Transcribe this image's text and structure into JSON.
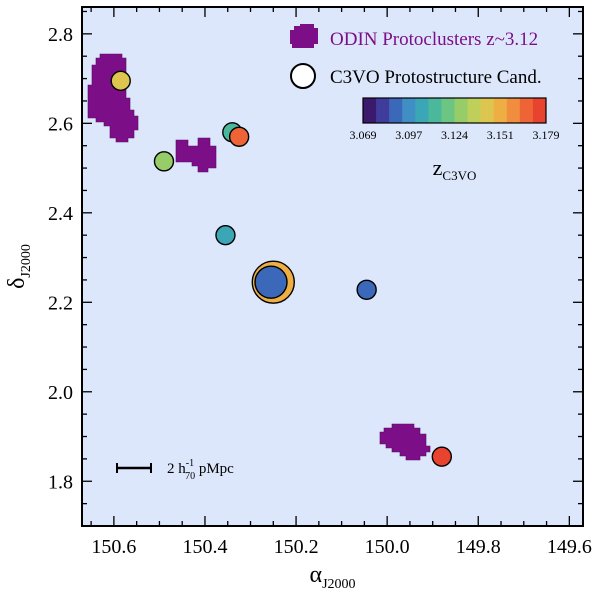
{
  "chart_data": {
    "type": "scatter",
    "xlabel": "α",
    "xlabel_sub": "J2000",
    "ylabel": "δ",
    "ylabel_sub": "J2000",
    "xlim": [
      150.67,
      149.57
    ],
    "ylim": [
      1.7,
      2.86
    ],
    "x_inverted": true,
    "x_ticks": [
      150.6,
      150.4,
      150.2,
      150.0,
      149.8,
      149.6
    ],
    "x_tick_labels": [
      "150.6",
      "150.4",
      "150.2",
      "150.0",
      "149.8",
      "149.6"
    ],
    "y_ticks": [
      1.8,
      2.0,
      2.2,
      2.4,
      2.6,
      2.8
    ],
    "y_tick_labels": [
      "1.8",
      "2.0",
      "2.2",
      "2.4",
      "2.6",
      "2.8"
    ],
    "background_color": "#dce7fb",
    "legend_placement": "top-right",
    "legend": {
      "protoclusters_label": "ODIN Protoclusters z~3.12",
      "protoclusters_color": "#7c0e87",
      "c3vo_label": "C3VO Protostructure Cand."
    },
    "protoclusters": [
      {
        "ra_center": 150.615,
        "dec_center": 2.64
      },
      {
        "ra_center": 150.385,
        "dec_center": 2.52
      },
      {
        "ra_center": 149.965,
        "dec_center": 1.88
      }
    ],
    "c3vo_candidates": [
      {
        "ra": 150.585,
        "dec": 2.695,
        "z": 3.14
      },
      {
        "ra": 150.49,
        "dec": 2.515,
        "z": 3.13
      },
      {
        "ra": 150.34,
        "dec": 2.58,
        "z": 3.11
      },
      {
        "ra": 150.325,
        "dec": 2.57,
        "z": 3.165
      },
      {
        "ra": 150.355,
        "dec": 2.35,
        "z": 3.105
      },
      {
        "ra": 150.25,
        "dec": 2.245,
        "z": 3.148,
        "size": "large"
      },
      {
        "ra": 150.255,
        "dec": 2.245,
        "z": 3.085
      },
      {
        "ra": 150.045,
        "dec": 2.228,
        "z": 3.09
      },
      {
        "ra": 149.88,
        "dec": 1.855,
        "z": 3.172
      }
    ],
    "colorbar": {
      "label": "z",
      "label_sub": "C3VO",
      "range": [
        3.069,
        3.179
      ],
      "ticks": [
        "3.069",
        "3.097",
        "3.124",
        "3.151",
        "3.179"
      ],
      "colors": [
        "#3b1a6e",
        "#3f3c9b",
        "#3b68b8",
        "#3f8fc4",
        "#3aa6b6",
        "#4bb89c",
        "#6cc583",
        "#97cd69",
        "#bfcf5a",
        "#dcc64f",
        "#eeae44",
        "#f18d3e",
        "#ee6436",
        "#e8432e"
      ]
    },
    "scale_bar": {
      "label_prefix": "2 h",
      "label_sup": "-1",
      "label_sub": "70",
      "label_suffix": " pMpc"
    }
  }
}
